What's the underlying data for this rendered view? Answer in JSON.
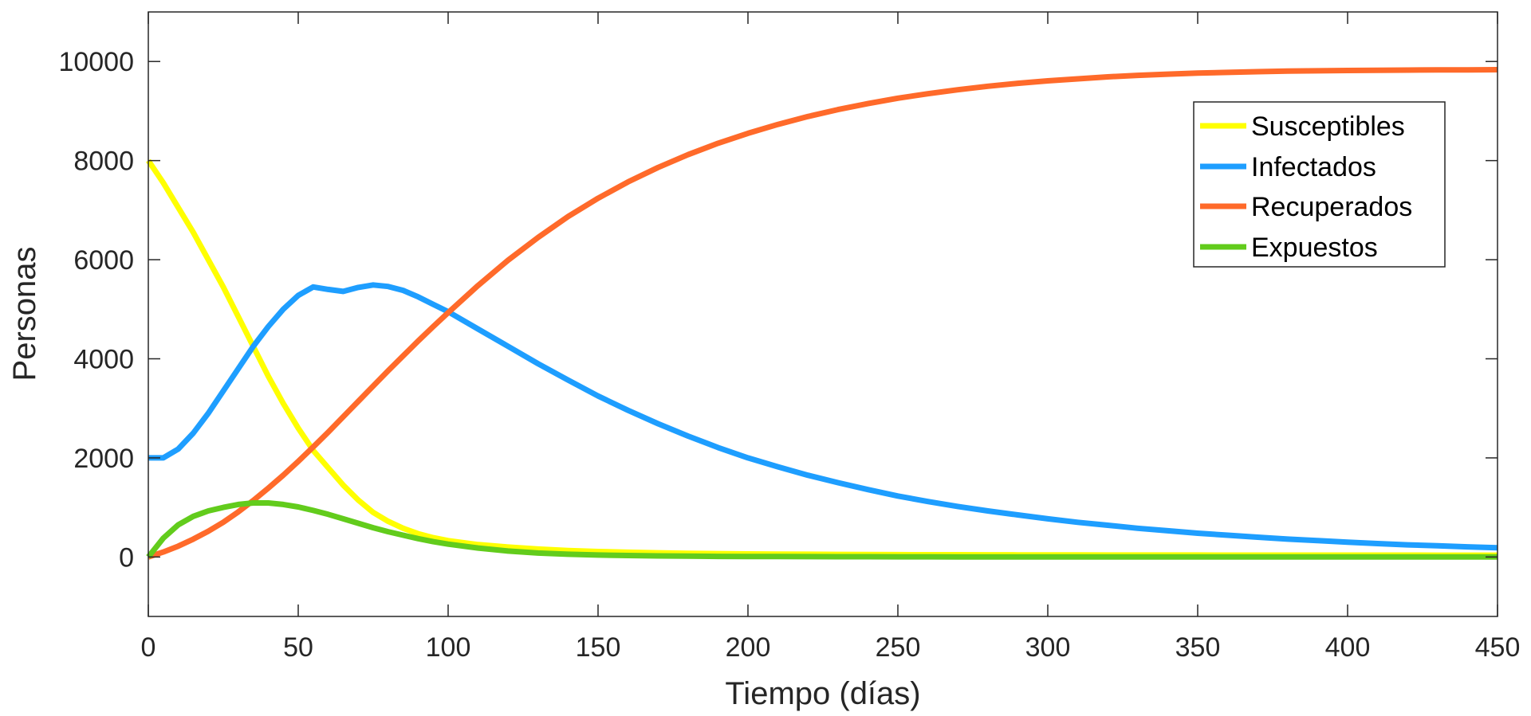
{
  "chart_data": {
    "type": "line",
    "title": "",
    "xlabel": "Tiempo (días)",
    "ylabel": "Personas",
    "xlim": [
      0,
      450
    ],
    "ylim": [
      -1200,
      11000
    ],
    "xticks": [
      0,
      50,
      100,
      150,
      200,
      250,
      300,
      350,
      400,
      450
    ],
    "yticks": [
      0,
      2000,
      4000,
      6000,
      8000,
      10000
    ],
    "grid": false,
    "legend_position": "top-right",
    "x": [
      0,
      5,
      10,
      15,
      20,
      25,
      30,
      35,
      40,
      45,
      50,
      55,
      60,
      65,
      70,
      75,
      80,
      85,
      90,
      95,
      100,
      110,
      120,
      130,
      140,
      150,
      160,
      170,
      180,
      190,
      200,
      210,
      220,
      230,
      240,
      250,
      260,
      270,
      280,
      290,
      300,
      310,
      320,
      330,
      340,
      350,
      360,
      370,
      380,
      390,
      400,
      410,
      420,
      430,
      440,
      450
    ],
    "series": [
      {
        "name": "Susceptibles",
        "color": "#ffff00",
        "values": [
          8000,
          7550,
          7050,
          6550,
          6000,
          5450,
          4850,
          4250,
          3650,
          3100,
          2600,
          2150,
          1800,
          1450,
          1150,
          900,
          720,
          580,
          470,
          390,
          330,
          250,
          200,
          160,
          130,
          110,
          95,
          85,
          75,
          68,
          62,
          58,
          55,
          52,
          50,
          48,
          46,
          45,
          44,
          43,
          42,
          41,
          40,
          40,
          39,
          39,
          38,
          38,
          38,
          37,
          37,
          37,
          37,
          36,
          36,
          36
        ]
      },
      {
        "name": "Infectados",
        "color": "#1e9eff",
        "values": [
          2000,
          2000,
          2180,
          2500,
          2900,
          3350,
          3800,
          4250,
          4650,
          5000,
          5280,
          5450,
          5400,
          5360,
          5440,
          5490,
          5460,
          5380,
          5250,
          5100,
          4950,
          4600,
          4250,
          3900,
          3570,
          3250,
          2960,
          2690,
          2440,
          2210,
          2000,
          1820,
          1650,
          1500,
          1360,
          1230,
          1120,
          1020,
          930,
          850,
          770,
          700,
          640,
          580,
          530,
          480,
          440,
          400,
          360,
          330,
          300,
          270,
          245,
          225,
          205,
          185
        ]
      },
      {
        "name": "Recuperados",
        "color": "#ff6a2a",
        "values": [
          0,
          100,
          220,
          360,
          520,
          700,
          910,
          1140,
          1390,
          1650,
          1930,
          2220,
          2520,
          2830,
          3140,
          3450,
          3760,
          4060,
          4360,
          4650,
          4930,
          5480,
          5990,
          6450,
          6870,
          7240,
          7570,
          7860,
          8120,
          8350,
          8550,
          8730,
          8890,
          9030,
          9150,
          9260,
          9350,
          9430,
          9500,
          9560,
          9610,
          9650,
          9690,
          9720,
          9745,
          9765,
          9780,
          9795,
          9805,
          9812,
          9818,
          9823,
          9827,
          9830,
          9832,
          9834
        ]
      },
      {
        "name": "Expuestos",
        "color": "#62cc1c",
        "values": [
          0,
          380,
          650,
          820,
          930,
          1000,
          1060,
          1090,
          1090,
          1060,
          1010,
          940,
          860,
          770,
          680,
          590,
          510,
          440,
          370,
          310,
          260,
          180,
          120,
          80,
          55,
          40,
          30,
          22,
          16,
          12,
          10,
          8,
          7,
          6,
          5,
          4,
          4,
          3,
          3,
          3,
          2,
          2,
          2,
          2,
          2,
          2,
          2,
          1,
          1,
          1,
          1,
          1,
          1,
          1,
          1,
          1
        ]
      }
    ]
  }
}
